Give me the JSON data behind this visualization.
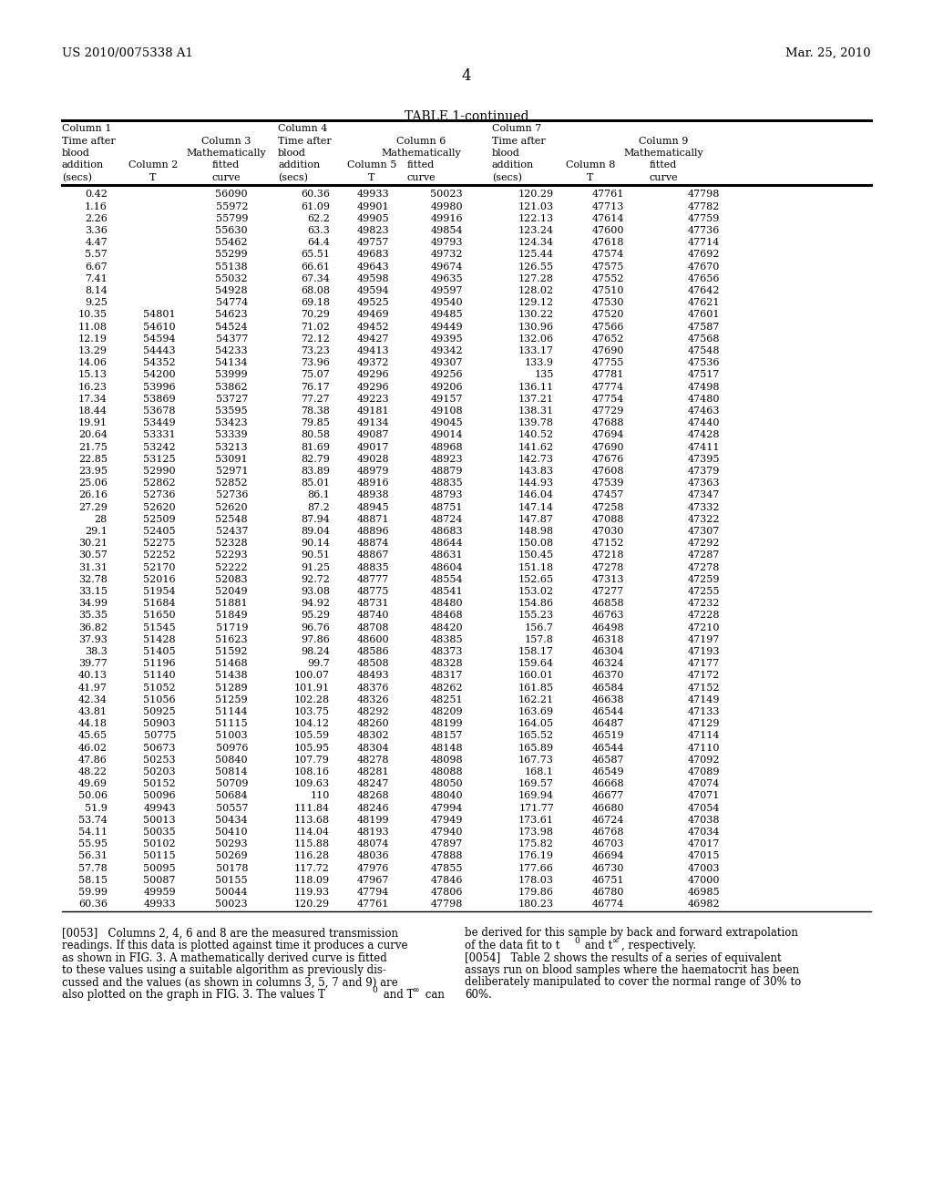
{
  "header_left": "US 2010/0075338 A1",
  "header_right": "Mar. 25, 2010",
  "page_number": "4",
  "table_title": "TABLE 1-continued",
  "table_data": [
    [
      "0.42",
      "",
      "56090",
      "60.36",
      "49933",
      "50023",
      "120.29",
      "47761",
      "47798"
    ],
    [
      "1.16",
      "",
      "55972",
      "61.09",
      "49901",
      "49980",
      "121.03",
      "47713",
      "47782"
    ],
    [
      "2.26",
      "",
      "55799",
      "62.2",
      "49905",
      "49916",
      "122.13",
      "47614",
      "47759"
    ],
    [
      "3.36",
      "",
      "55630",
      "63.3",
      "49823",
      "49854",
      "123.24",
      "47600",
      "47736"
    ],
    [
      "4.47",
      "",
      "55462",
      "64.4",
      "49757",
      "49793",
      "124.34",
      "47618",
      "47714"
    ],
    [
      "5.57",
      "",
      "55299",
      "65.51",
      "49683",
      "49732",
      "125.44",
      "47574",
      "47692"
    ],
    [
      "6.67",
      "",
      "55138",
      "66.61",
      "49643",
      "49674",
      "126.55",
      "47575",
      "47670"
    ],
    [
      "7.41",
      "",
      "55032",
      "67.34",
      "49598",
      "49635",
      "127.28",
      "47552",
      "47656"
    ],
    [
      "8.14",
      "",
      "54928",
      "68.08",
      "49594",
      "49597",
      "128.02",
      "47510",
      "47642"
    ],
    [
      "9.25",
      "",
      "54774",
      "69.18",
      "49525",
      "49540",
      "129.12",
      "47530",
      "47621"
    ],
    [
      "10.35",
      "54801",
      "54623",
      "70.29",
      "49469",
      "49485",
      "130.22",
      "47520",
      "47601"
    ],
    [
      "11.08",
      "54610",
      "54524",
      "71.02",
      "49452",
      "49449",
      "130.96",
      "47566",
      "47587"
    ],
    [
      "12.19",
      "54594",
      "54377",
      "72.12",
      "49427",
      "49395",
      "132.06",
      "47652",
      "47568"
    ],
    [
      "13.29",
      "54443",
      "54233",
      "73.23",
      "49413",
      "49342",
      "133.17",
      "47690",
      "47548"
    ],
    [
      "14.06",
      "54352",
      "54134",
      "73.96",
      "49372",
      "49307",
      "133.9",
      "47755",
      "47536"
    ],
    [
      "15.13",
      "54200",
      "53999",
      "75.07",
      "49296",
      "49256",
      "135",
      "47781",
      "47517"
    ],
    [
      "16.23",
      "53996",
      "53862",
      "76.17",
      "49296",
      "49206",
      "136.11",
      "47774",
      "47498"
    ],
    [
      "17.34",
      "53869",
      "53727",
      "77.27",
      "49223",
      "49157",
      "137.21",
      "47754",
      "47480"
    ],
    [
      "18.44",
      "53678",
      "53595",
      "78.38",
      "49181",
      "49108",
      "138.31",
      "47729",
      "47463"
    ],
    [
      "19.91",
      "53449",
      "53423",
      "79.85",
      "49134",
      "49045",
      "139.78",
      "47688",
      "47440"
    ],
    [
      "20.64",
      "53331",
      "53339",
      "80.58",
      "49087",
      "49014",
      "140.52",
      "47694",
      "47428"
    ],
    [
      "21.75",
      "53242",
      "53213",
      "81.69",
      "49017",
      "48968",
      "141.62",
      "47690",
      "47411"
    ],
    [
      "22.85",
      "53125",
      "53091",
      "82.79",
      "49028",
      "48923",
      "142.73",
      "47676",
      "47395"
    ],
    [
      "23.95",
      "52990",
      "52971",
      "83.89",
      "48979",
      "48879",
      "143.83",
      "47608",
      "47379"
    ],
    [
      "25.06",
      "52862",
      "52852",
      "85.01",
      "48916",
      "48835",
      "144.93",
      "47539",
      "47363"
    ],
    [
      "26.16",
      "52736",
      "52736",
      "86.1",
      "48938",
      "48793",
      "146.04",
      "47457",
      "47347"
    ],
    [
      "27.29",
      "52620",
      "52620",
      "87.2",
      "48945",
      "48751",
      "147.14",
      "47258",
      "47332"
    ],
    [
      "28",
      "52509",
      "52548",
      "87.94",
      "48871",
      "48724",
      "147.87",
      "47088",
      "47322"
    ],
    [
      "29.1",
      "52405",
      "52437",
      "89.04",
      "48896",
      "48683",
      "148.98",
      "47030",
      "47307"
    ],
    [
      "30.21",
      "52275",
      "52328",
      "90.14",
      "48874",
      "48644",
      "150.08",
      "47152",
      "47292"
    ],
    [
      "30.57",
      "52252",
      "52293",
      "90.51",
      "48867",
      "48631",
      "150.45",
      "47218",
      "47287"
    ],
    [
      "31.31",
      "52170",
      "52222",
      "91.25",
      "48835",
      "48604",
      "151.18",
      "47278",
      "47278"
    ],
    [
      "32.78",
      "52016",
      "52083",
      "92.72",
      "48777",
      "48554",
      "152.65",
      "47313",
      "47259"
    ],
    [
      "33.15",
      "51954",
      "52049",
      "93.08",
      "48775",
      "48541",
      "153.02",
      "47277",
      "47255"
    ],
    [
      "34.99",
      "51684",
      "51881",
      "94.92",
      "48731",
      "48480",
      "154.86",
      "46858",
      "47232"
    ],
    [
      "35.35",
      "51650",
      "51849",
      "95.29",
      "48740",
      "48468",
      "155.23",
      "46763",
      "47228"
    ],
    [
      "36.82",
      "51545",
      "51719",
      "96.76",
      "48708",
      "48420",
      "156.7",
      "46498",
      "47210"
    ],
    [
      "37.93",
      "51428",
      "51623",
      "97.86",
      "48600",
      "48385",
      "157.8",
      "46318",
      "47197"
    ],
    [
      "38.3",
      "51405",
      "51592",
      "98.24",
      "48586",
      "48373",
      "158.17",
      "46304",
      "47193"
    ],
    [
      "39.77",
      "51196",
      "51468",
      "99.7",
      "48508",
      "48328",
      "159.64",
      "46324",
      "47177"
    ],
    [
      "40.13",
      "51140",
      "51438",
      "100.07",
      "48493",
      "48317",
      "160.01",
      "46370",
      "47172"
    ],
    [
      "41.97",
      "51052",
      "51289",
      "101.91",
      "48376",
      "48262",
      "161.85",
      "46584",
      "47152"
    ],
    [
      "42.34",
      "51056",
      "51259",
      "102.28",
      "48326",
      "48251",
      "162.21",
      "46638",
      "47149"
    ],
    [
      "43.81",
      "50925",
      "51144",
      "103.75",
      "48292",
      "48209",
      "163.69",
      "46544",
      "47133"
    ],
    [
      "44.18",
      "50903",
      "51115",
      "104.12",
      "48260",
      "48199",
      "164.05",
      "46487",
      "47129"
    ],
    [
      "45.65",
      "50775",
      "51003",
      "105.59",
      "48302",
      "48157",
      "165.52",
      "46519",
      "47114"
    ],
    [
      "46.02",
      "50673",
      "50976",
      "105.95",
      "48304",
      "48148",
      "165.89",
      "46544",
      "47110"
    ],
    [
      "47.86",
      "50253",
      "50840",
      "107.79",
      "48278",
      "48098",
      "167.73",
      "46587",
      "47092"
    ],
    [
      "48.22",
      "50203",
      "50814",
      "108.16",
      "48281",
      "48088",
      "168.1",
      "46549",
      "47089"
    ],
    [
      "49.69",
      "50152",
      "50709",
      "109.63",
      "48247",
      "48050",
      "169.57",
      "46668",
      "47074"
    ],
    [
      "50.06",
      "50096",
      "50684",
      "110",
      "48268",
      "48040",
      "169.94",
      "46677",
      "47071"
    ],
    [
      "51.9",
      "49943",
      "50557",
      "111.84",
      "48246",
      "47994",
      "171.77",
      "46680",
      "47054"
    ],
    [
      "53.74",
      "50013",
      "50434",
      "113.68",
      "48199",
      "47949",
      "173.61",
      "46724",
      "47038"
    ],
    [
      "54.11",
      "50035",
      "50410",
      "114.04",
      "48193",
      "47940",
      "173.98",
      "46768",
      "47034"
    ],
    [
      "55.95",
      "50102",
      "50293",
      "115.88",
      "48074",
      "47897",
      "175.82",
      "46703",
      "47017"
    ],
    [
      "56.31",
      "50115",
      "50269",
      "116.28",
      "48036",
      "47888",
      "176.19",
      "46694",
      "47015"
    ],
    [
      "57.78",
      "50095",
      "50178",
      "117.72",
      "47976",
      "47855",
      "177.66",
      "46730",
      "47003"
    ],
    [
      "58.15",
      "50087",
      "50155",
      "118.09",
      "47967",
      "47846",
      "178.03",
      "46751",
      "47000"
    ],
    [
      "59.99",
      "49959",
      "50044",
      "119.93",
      "47794",
      "47806",
      "179.86",
      "46780",
      "46985"
    ],
    [
      "60.36",
      "49933",
      "50023",
      "120.29",
      "47761",
      "47798",
      "180.23",
      "46774",
      "46982"
    ]
  ]
}
